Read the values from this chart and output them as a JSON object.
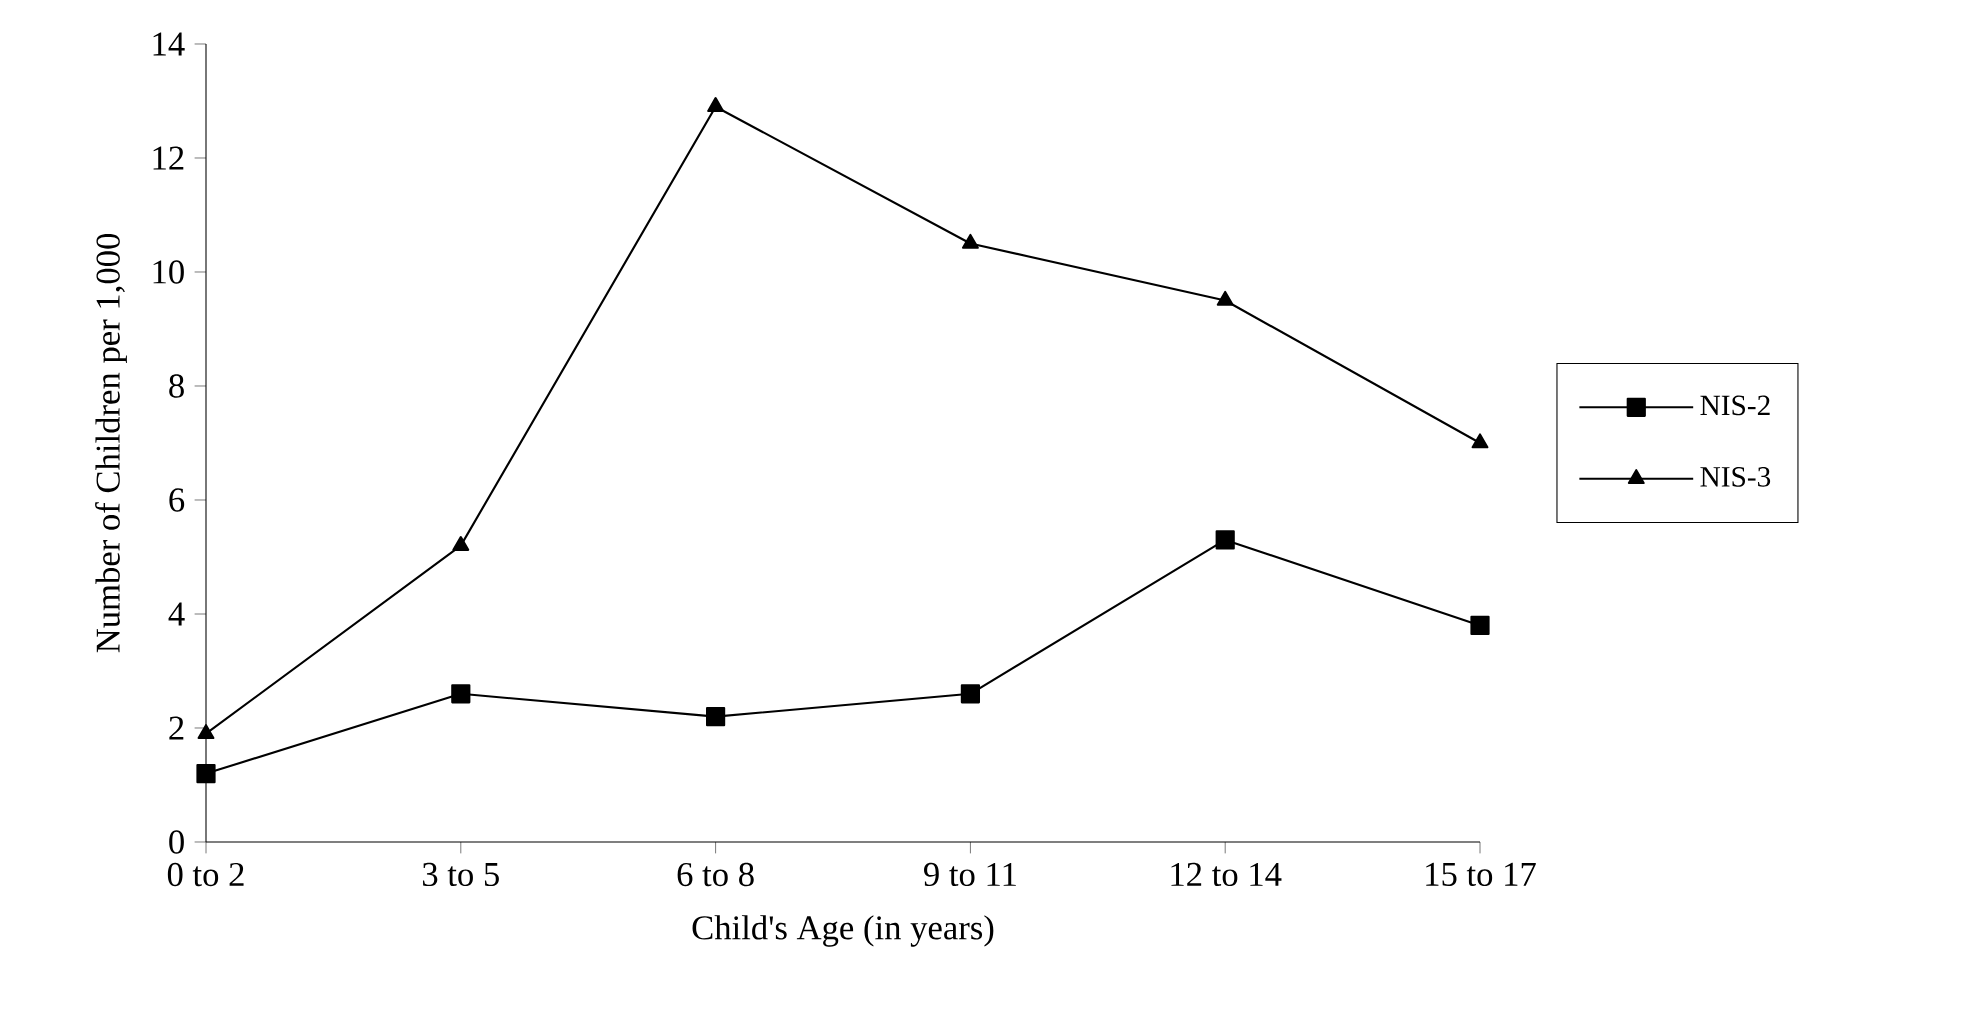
{
  "chart_data": {
    "type": "line",
    "xlabel": "Child's Age (in years)",
    "ylabel": "Number of Children per 1,000",
    "categories": [
      "0 to 2",
      "3 to 5",
      "6 to 8",
      "9 to 11",
      "12 to 14",
      "15 to 17"
    ],
    "series": [
      {
        "name": "NIS-2",
        "color": "#000000",
        "marker": "square",
        "values": [
          1.2,
          2.6,
          2.2,
          2.6,
          5.3,
          3.8
        ]
      },
      {
        "name": "NIS-3",
        "color": "#000000",
        "marker": "triangle",
        "values": [
          1.9,
          5.2,
          12.9,
          10.5,
          9.5,
          7.0
        ]
      }
    ],
    "ylim": [
      0,
      14
    ],
    "yticks": [
      0,
      2,
      4,
      6,
      8,
      10,
      12,
      14
    ],
    "grid": false,
    "legend": "right"
  }
}
